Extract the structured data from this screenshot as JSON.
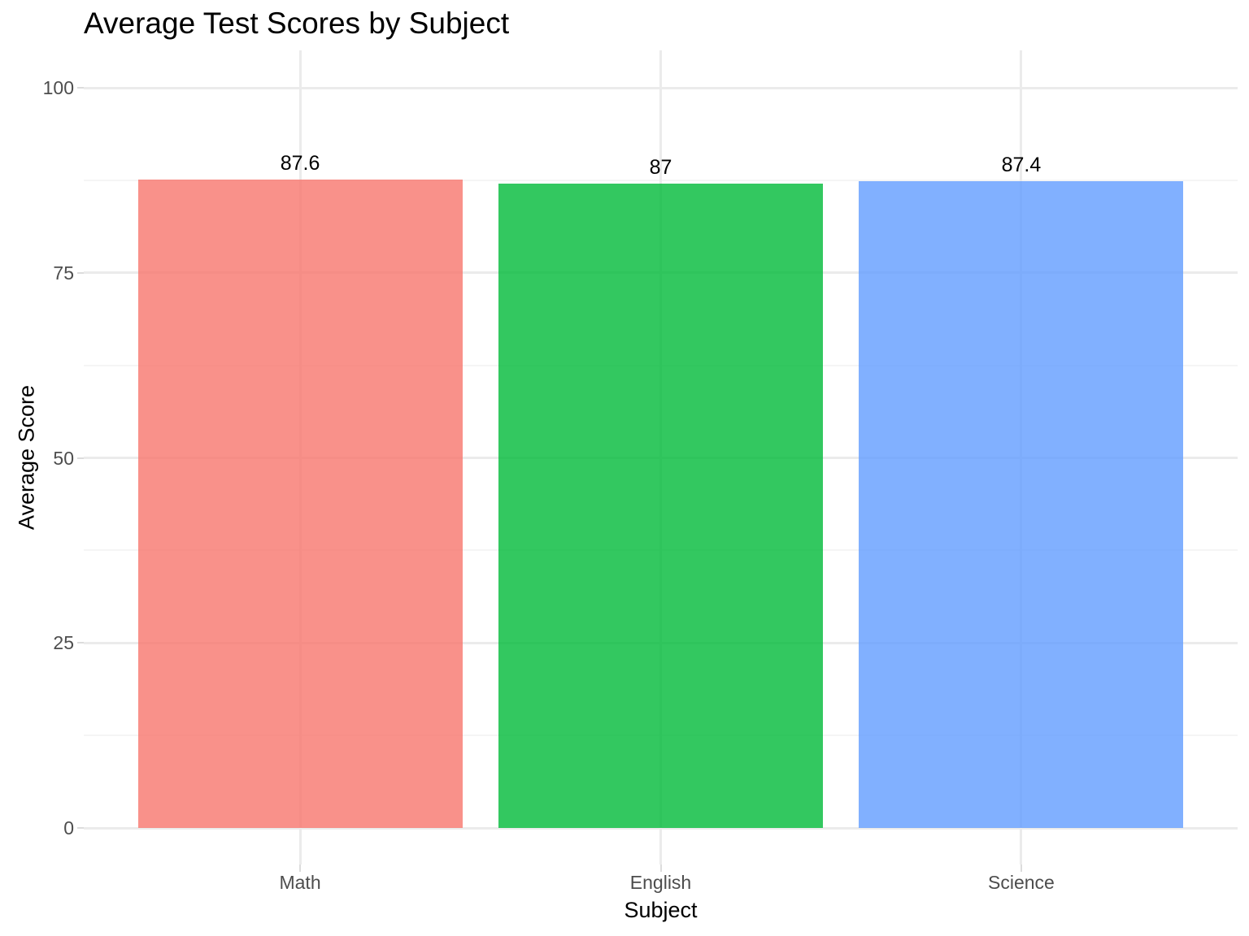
{
  "chart_data": {
    "type": "bar",
    "title": "Average Test Scores by Subject",
    "xlabel": "Subject",
    "ylabel": "Average Score",
    "categories": [
      "Math",
      "English",
      "Science"
    ],
    "values": [
      87.6,
      87,
      87.4
    ],
    "value_labels": [
      "87.6",
      "87",
      "87.4"
    ],
    "bar_colors": [
      "#F8766D",
      "#00BA38",
      "#619CFF"
    ],
    "bar_alpha": 0.8,
    "ylim": [
      0,
      100
    ],
    "yticks": [
      0,
      25,
      50,
      75,
      100
    ],
    "ytick_labels": [
      "0",
      "25",
      "50",
      "75",
      "100"
    ],
    "grid": "major+minor",
    "legend": "none",
    "background_color": "#FFFFFF",
    "grid_major_color": "#EBEBEB",
    "grid_minor_color": "#F5F5F5",
    "tick_mark_color": "#DCDCDC",
    "tick_label_color": "#4D4D4D",
    "title_color": "#000000",
    "axis_title_color": "#000000"
  }
}
